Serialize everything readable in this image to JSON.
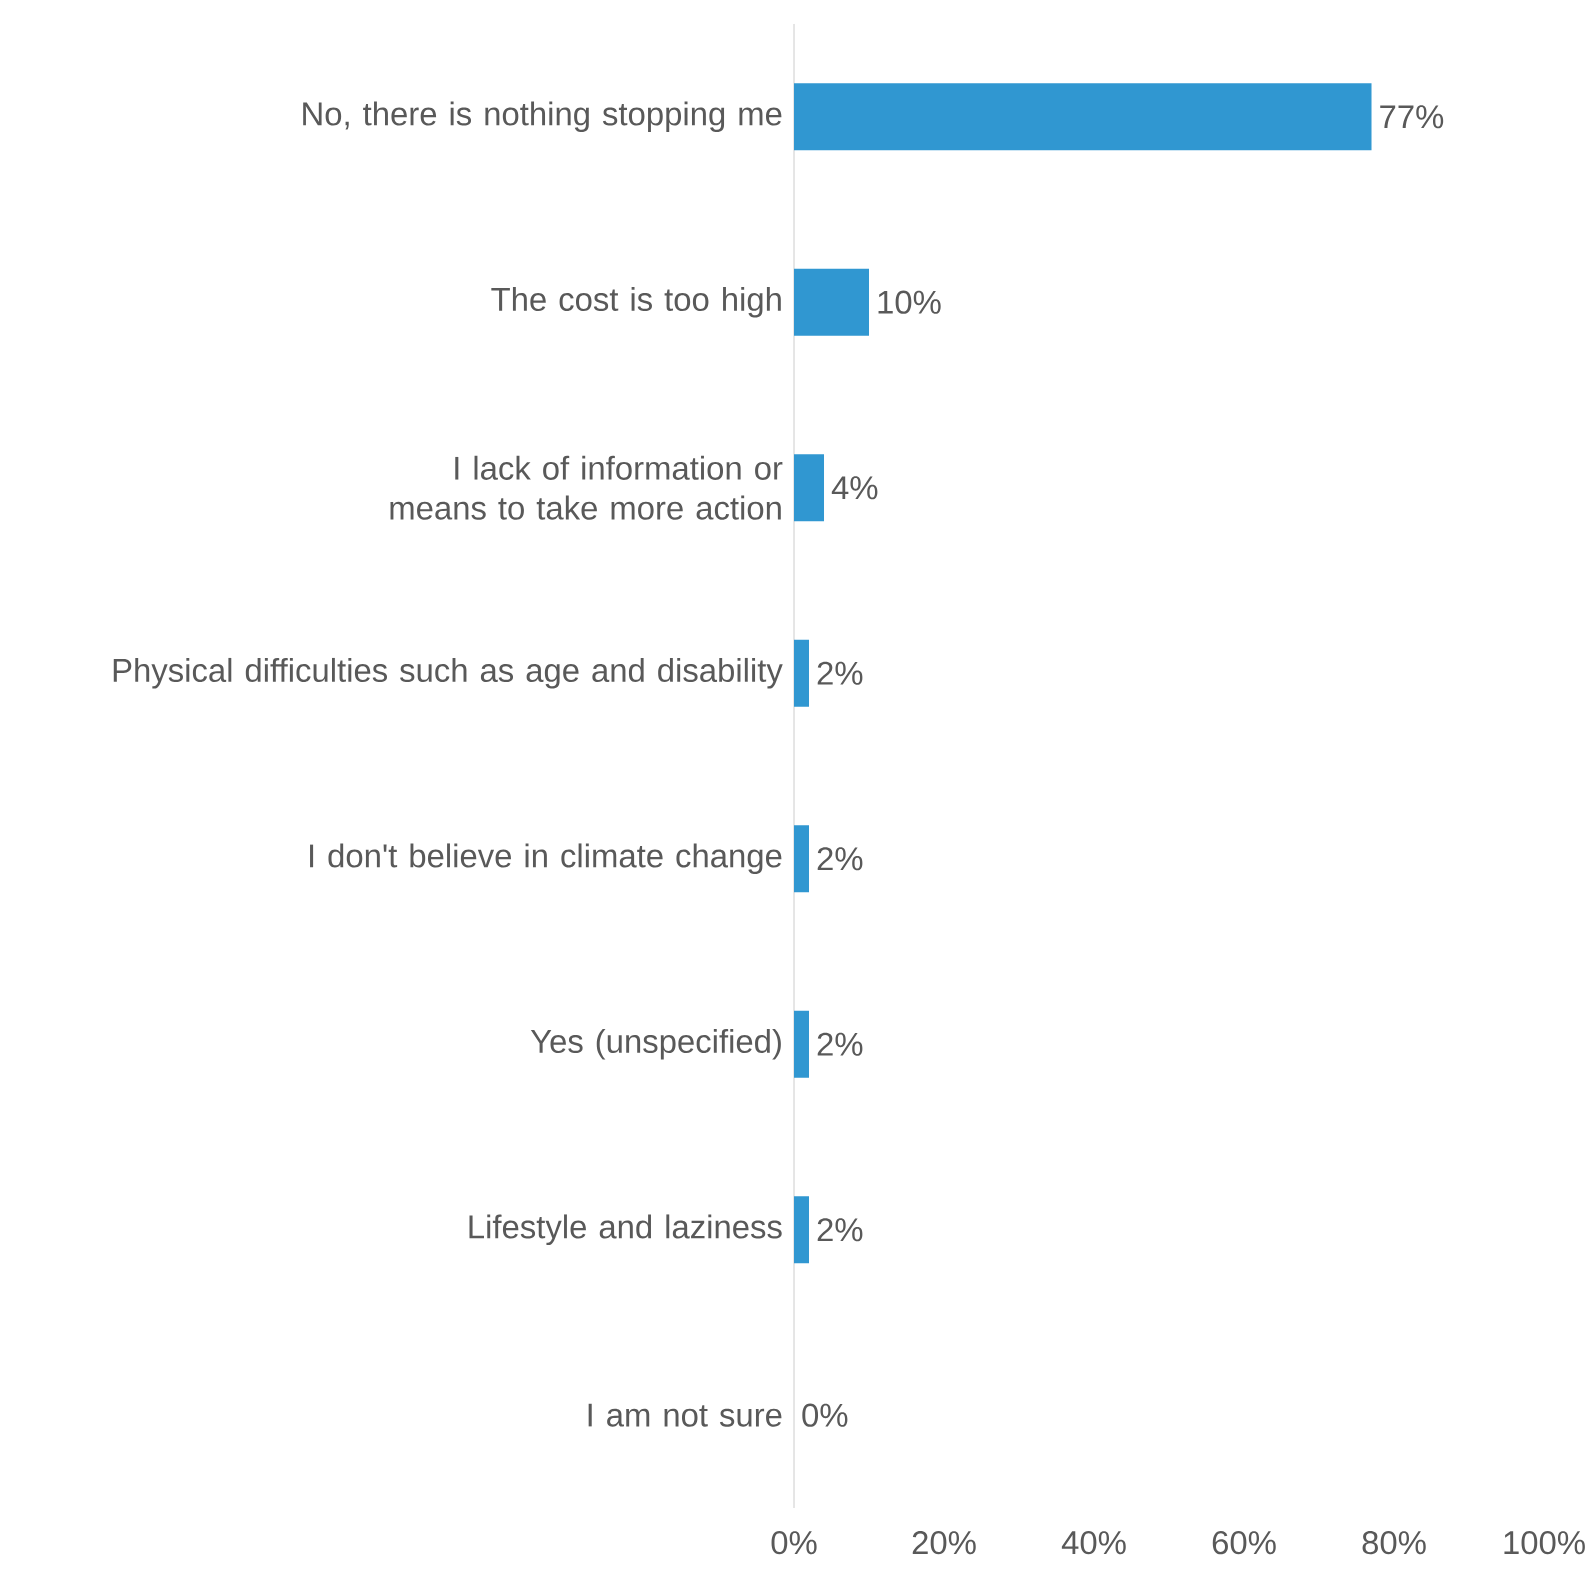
{
  "chart_data": {
    "type": "bar",
    "orientation": "horizontal",
    "categories": [
      "No, there is nothing stopping me",
      "The cost is too high",
      "I lack of information or means to take more action",
      "Physical difficulties such as age and disability",
      "I don't believe in climate change",
      "Yes (unspecified)",
      "Lifestyle and laziness",
      "I am not sure"
    ],
    "values": [
      77,
      10,
      4,
      2,
      2,
      2,
      2,
      0
    ],
    "value_labels": [
      "77%",
      "10%",
      "4%",
      "2%",
      "2%",
      "2%",
      "2%",
      "0%"
    ],
    "color": "#3097d1",
    "xlim": [
      0,
      100
    ],
    "xticks": [
      {
        "value": 0,
        "label": "0%"
      },
      {
        "value": 20,
        "label": "20%"
      },
      {
        "value": 40,
        "label": "40%"
      },
      {
        "value": 60,
        "label": "60%"
      },
      {
        "value": 80,
        "label": "80%"
      },
      {
        "value": 100,
        "label": "100%"
      }
    ],
    "grid": false
  }
}
